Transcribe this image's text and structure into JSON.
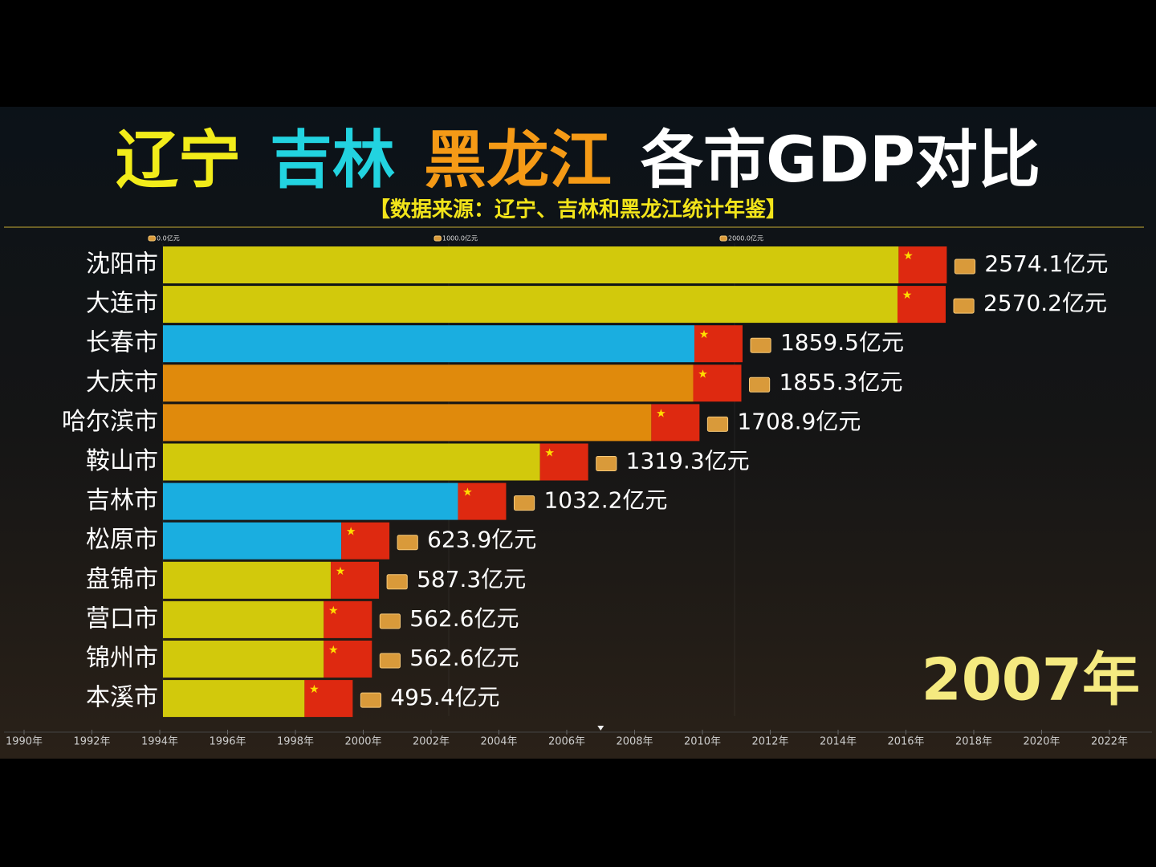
{
  "chart_data": {
    "type": "bar",
    "orientation": "horizontal",
    "title_parts": [
      {
        "text": "辽宁",
        "color": "#f2ec1a"
      },
      {
        "text": "吉林",
        "color": "#22d3e0"
      },
      {
        "text": "黑龙江",
        "color": "#f59a16"
      },
      {
        "text": "各市GDP对比",
        "color": "#ffffff"
      }
    ],
    "subtitle": "【数据来源：辽宁、吉林和黑龙江统计年鉴】",
    "categories": [
      "沈阳市",
      "大连市",
      "长春市",
      "大庆市",
      "哈尔滨市",
      "鞍山市",
      "吉林市",
      "松原市",
      "盘锦市",
      "营口市",
      "锦州市",
      "本溪市"
    ],
    "values": [
      2574.1,
      2570.2,
      1859.5,
      1855.3,
      1708.9,
      1319.3,
      1032.2,
      623.9,
      587.3,
      562.6,
      562.6,
      495.4
    ],
    "value_labels": [
      "2574.1亿元",
      "2570.2亿元",
      "1859.5亿元",
      "1855.3亿元",
      "1708.9亿元",
      "1319.3亿元",
      "1032.2亿元",
      "623.9亿元",
      "587.3亿元",
      "562.6亿元",
      "562.6亿元",
      "495.4亿元"
    ],
    "colors": [
      "#d2c90c",
      "#d2c90c",
      "#1aaee0",
      "#e08a0c",
      "#e08a0c",
      "#d2c90c",
      "#1aaee0",
      "#1aaee0",
      "#d2c90c",
      "#d2c90c",
      "#d2c90c",
      "#d2c90c"
    ],
    "xlim": [
      0,
      3000
    ],
    "xticks": [
      {
        "value": 0,
        "label": "0.0亿元"
      },
      {
        "value": 1000,
        "label": "1000.0亿元"
      },
      {
        "value": 2000,
        "label": "2000.0亿元"
      }
    ],
    "timeline": {
      "xlim": [
        1990,
        2022
      ],
      "xticks": [
        {
          "value": 1990,
          "label": "1990年"
        },
        {
          "value": 1992,
          "label": "1992年"
        },
        {
          "value": 1994,
          "label": "1994年"
        },
        {
          "value": 1996,
          "label": "1996年"
        },
        {
          "value": 1998,
          "label": "1998年"
        },
        {
          "value": 2000,
          "label": "2000年"
        },
        {
          "value": 2002,
          "label": "2002年"
        },
        {
          "value": 2004,
          "label": "2004年"
        },
        {
          "value": 2006,
          "label": "2006年"
        },
        {
          "value": 2008,
          "label": "2008年"
        },
        {
          "value": 2010,
          "label": "2010年"
        },
        {
          "value": 2012,
          "label": "2012年"
        },
        {
          "value": 2014,
          "label": "2014年"
        },
        {
          "value": 2016,
          "label": "2016年"
        },
        {
          "value": 2018,
          "label": "2018年"
        },
        {
          "value": 2020,
          "label": "2020年"
        },
        {
          "value": 2022,
          "label": "2022年"
        }
      ],
      "current": {
        "value": 2007,
        "label": "2007年"
      }
    }
  }
}
